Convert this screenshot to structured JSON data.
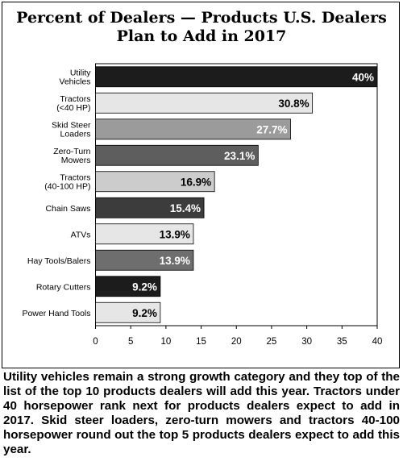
{
  "title_line1": "Percent of Dealers — Products U.S. Dealers",
  "title_line2": "Plan to Add in 2017",
  "caption": "Utility vehicles remain a strong growth category and they top of the list of the top 10 products dealers will add this year. Tractors under 40 horsepower rank next for products dealers expect to add in 2017. Skid steer loaders, zero-turn mowers and tractors 40-100 horsepower round out the top 5 products dealers expect to add this year.",
  "chart_data": {
    "type": "bar",
    "orientation": "horizontal",
    "title": "Percent of Dealers — Products U.S. Dealers Plan to Add in 2017",
    "categories": [
      [
        "Utility",
        "Vehicles"
      ],
      [
        "Tractors",
        "(<40 HP)"
      ],
      [
        "Skid Steer",
        "Loaders"
      ],
      [
        "Zero-Turn",
        "Mowers"
      ],
      [
        "Tractors",
        "(40-100 HP)"
      ],
      [
        "Chain Saws"
      ],
      [
        "ATVs"
      ],
      [
        "Hay Tools/Balers"
      ],
      [
        "Rotary Cutters"
      ],
      [
        "Power Hand Tools"
      ]
    ],
    "values": [
      40,
      30.8,
      27.7,
      23.1,
      16.9,
      15.4,
      13.9,
      13.9,
      9.2,
      9.2
    ],
    "data_labels": [
      "40%",
      "30.8%",
      "27.7%",
      "23.1%",
      "16.9%",
      "15.4%",
      "13.9%",
      "13.9%",
      "9.2%",
      "9.2%"
    ],
    "bar_colors": [
      "#1c1c1c",
      "#e6e6e6",
      "#9b9b9b",
      "#5e5e5e",
      "#cccccc",
      "#3c3c3c",
      "#e6e6e6",
      "#6e6e6e",
      "#1c1c1c",
      "#e6e6e6"
    ],
    "label_colors": [
      "#ffffff",
      "#000000",
      "#ffffff",
      "#ffffff",
      "#000000",
      "#ffffff",
      "#000000",
      "#ffffff",
      "#ffffff",
      "#000000"
    ],
    "x_ticks": [
      0,
      5,
      10,
      15,
      20,
      25,
      30,
      35,
      40
    ],
    "xlim": [
      0,
      40
    ],
    "grid": false,
    "legend": "none"
  }
}
